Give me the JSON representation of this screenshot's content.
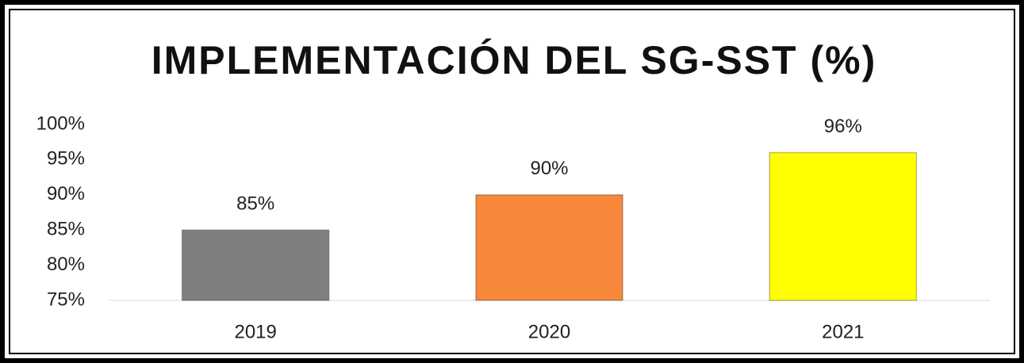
{
  "chart_data": {
    "type": "bar",
    "title": "IMPLEMENTACIÓN DEL SG-SST (%)",
    "categories": [
      "2019",
      "2020",
      "2021"
    ],
    "values": [
      85,
      90,
      96
    ],
    "value_labels": [
      "85%",
      "90%",
      "96%"
    ],
    "colors": [
      "#7f7f7f",
      "#f7873a",
      "#ffff00"
    ],
    "ylim": [
      75,
      100
    ],
    "yticks": [
      {
        "value": 75,
        "label": "75%"
      },
      {
        "value": 80,
        "label": "80%"
      },
      {
        "value": 85,
        "label": "85%"
      },
      {
        "value": 90,
        "label": "90%"
      },
      {
        "value": 95,
        "label": "95%"
      },
      {
        "value": 100,
        "label": "100%"
      }
    ],
    "grid": false
  }
}
